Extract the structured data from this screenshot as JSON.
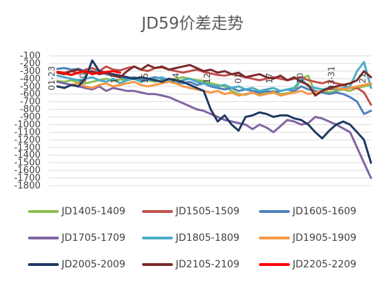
{
  "chart_data": {
    "type": "line",
    "title": "JD59价差走势",
    "xlabel": "",
    "ylabel": "",
    "ylim": [
      -1800,
      -100
    ],
    "yticks": [
      -100,
      -200,
      -300,
      -400,
      -500,
      -600,
      -700,
      -800,
      -900,
      -1000,
      -1100,
      -1200,
      -1300,
      -1400,
      -1500,
      -1600,
      -1700,
      -1800
    ],
    "x_tick_labels": [
      "01-23",
      "10",
      "11",
      "15",
      "14",
      "12",
      "01",
      "17",
      "10",
      "03-31",
      "21"
    ],
    "grid": "horizontal",
    "legend_position": "bottom",
    "series": [
      {
        "name": "JD1405-1409",
        "color": "#8dbf4f",
        "values": [
          -430,
          -440,
          -420,
          -450,
          -460,
          -440,
          -420,
          -400,
          -430,
          -410,
          -420,
          -380,
          -400,
          -420,
          -440,
          -420,
          -410,
          -400,
          -380,
          -400,
          -420,
          -430,
          -460,
          -480,
          -500,
          -560,
          -600,
          -610,
          -580,
          -600,
          -580,
          -560,
          -600,
          -590,
          -570,
          -400,
          -360,
          -600,
          -560,
          -580,
          -560,
          -540,
          -560,
          -520,
          -500,
          -480
        ]
      },
      {
        "name": "JD1505-1509",
        "color": "#c0504d",
        "values": [
          -310,
          -320,
          -300,
          -330,
          -280,
          -260,
          -300,
          -240,
          -280,
          -290,
          -260,
          -240,
          -280,
          -300,
          -260,
          -250,
          -280,
          -300,
          -320,
          -300,
          -280,
          -310,
          -330,
          -350,
          -360,
          -340,
          -360,
          -380,
          -400,
          -420,
          -400,
          -380,
          -400,
          -420,
          -400,
          -380,
          -420,
          -440,
          -460,
          -430,
          -460,
          -480,
          -520,
          -520,
          -580,
          -740
        ]
      },
      {
        "name": "JD1605-1609",
        "color": "#4f81bd",
        "values": [
          -270,
          -260,
          -280,
          -270,
          -300,
          -320,
          -300,
          -340,
          -360,
          -380,
          -400,
          -380,
          -420,
          -400,
          -380,
          -400,
          -420,
          -440,
          -460,
          -440,
          -480,
          -460,
          -500,
          -520,
          -540,
          -520,
          -560,
          -540,
          -560,
          -580,
          -560,
          -580,
          -560,
          -540,
          -560,
          -500,
          -540,
          -560,
          -580,
          -600,
          -580,
          -600,
          -640,
          -700,
          -860,
          -820
        ]
      },
      {
        "name": "JD1705-1709",
        "color": "#8064a2",
        "values": [
          -440,
          -460,
          -480,
          -500,
          -520,
          -540,
          -500,
          -560,
          -520,
          -540,
          -560,
          -560,
          -580,
          -600,
          -600,
          -620,
          -640,
          -680,
          -720,
          -760,
          -800,
          -820,
          -860,
          -900,
          -940,
          -960,
          -980,
          -1000,
          -1060,
          -1000,
          -1040,
          -1100,
          -1020,
          -940,
          -960,
          -1000,
          -980,
          -900,
          -920,
          -960,
          -1000,
          -1050,
          -1100,
          -1300,
          -1500,
          -1700
        ]
      },
      {
        "name": "JD1805-1809",
        "color": "#4bacc6",
        "values": [
          -360,
          -380,
          -400,
          -420,
          -400,
          -380,
          -420,
          -440,
          -400,
          -460,
          -420,
          -400,
          -440,
          -420,
          -400,
          -380,
          -420,
          -440,
          -420,
          -400,
          -440,
          -460,
          -480,
          -500,
          -480,
          -520,
          -500,
          -540,
          -520,
          -560,
          -540,
          -520,
          -560,
          -540,
          -520,
          -400,
          -500,
          -520,
          -540,
          -520,
          -540,
          -520,
          -500,
          -300,
          -180,
          -520
        ]
      },
      {
        "name": "JD1905-1909",
        "color": "#f79646",
        "values": [
          -500,
          -520,
          -480,
          -460,
          -500,
          -520,
          -480,
          -460,
          -500,
          -480,
          -460,
          -440,
          -480,
          -500,
          -480,
          -460,
          -440,
          -460,
          -500,
          -520,
          -540,
          -560,
          -580,
          -560,
          -600,
          -580,
          -620,
          -600,
          -580,
          -620,
          -600,
          -580,
          -620,
          -600,
          -580,
          -560,
          -600,
          -580,
          -560,
          -540,
          -520,
          -540,
          -520,
          -500,
          -480,
          -460
        ]
      },
      {
        "name": "JD2005-2009",
        "color": "#1f3864",
        "values": [
          -500,
          -520,
          -480,
          -500,
          -400,
          -160,
          -300,
          -320,
          -340,
          -360,
          -380,
          -400,
          -380,
          -400,
          -420,
          -440,
          -400,
          -420,
          -440,
          -480,
          -520,
          -560,
          -800,
          -960,
          -880,
          -1000,
          -1080,
          -900,
          -880,
          -840,
          -860,
          -900,
          -880,
          -880,
          -920,
          -940,
          -1000,
          -1100,
          -1180,
          -1080,
          -1000,
          -960,
          -1000,
          -1100,
          -1200,
          -1500
        ]
      },
      {
        "name": "JD2105-2109",
        "color": "#7b2a2a",
        "values": [
          -320,
          -340,
          -300,
          -280,
          -320,
          -300,
          -340,
          -320,
          -360,
          -380,
          -300,
          -240,
          -280,
          -220,
          -260,
          -240,
          -280,
          -260,
          -240,
          -220,
          -260,
          -300,
          -280,
          -320,
          -300,
          -340,
          -320,
          -380,
          -360,
          -340,
          -380,
          -400,
          -360,
          -420,
          -380,
          -440,
          -480,
          -620,
          -560,
          -520,
          -500,
          -480,
          -460,
          -420,
          -300,
          -380
        ]
      },
      {
        "name": "JD2205-2209",
        "color": "#ff0000",
        "values": [
          -310,
          -330,
          -350,
          -320,
          -300,
          -340,
          -320,
          -310,
          -300,
          -320,
          null,
          null,
          null,
          null,
          null,
          null,
          null,
          null,
          null,
          null,
          null,
          null,
          null,
          null,
          null,
          null,
          null,
          null,
          null,
          null,
          null,
          null,
          null,
          null,
          null,
          null,
          null,
          null,
          null,
          null,
          null,
          null,
          null,
          null,
          null,
          null
        ]
      }
    ]
  }
}
